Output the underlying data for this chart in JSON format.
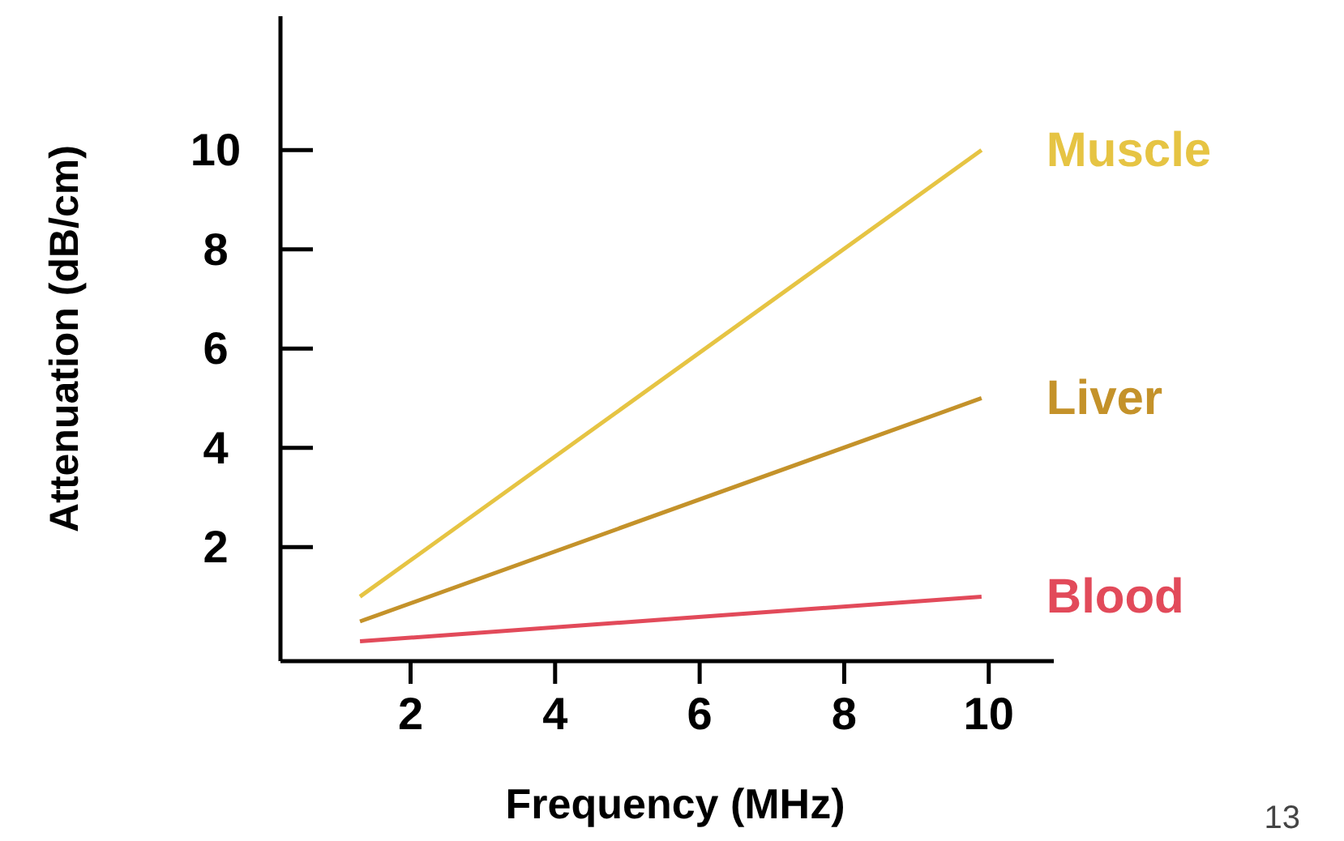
{
  "chart_data": {
    "type": "line",
    "xlabel": "Frequency (MHz)",
    "ylabel": "Attenuation (dB/cm)",
    "xlim": [
      0.2,
      10.9
    ],
    "ylim": [
      -0.3,
      12.7
    ],
    "xticks": [
      2,
      4,
      6,
      8,
      10
    ],
    "yticks": [
      2,
      4,
      6,
      8,
      10
    ],
    "grid": false,
    "legend": false,
    "marker": "none",
    "line_style": "solid",
    "annotations": [
      "13"
    ],
    "x": [
      1.3,
      9.9
    ],
    "series": [
      {
        "name": "Muscle",
        "color": "#e6c443",
        "values": [
          1.0,
          10.0
        ]
      },
      {
        "name": "Liver",
        "color": "#c4922a",
        "values": [
          0.5,
          5.0
        ]
      },
      {
        "name": "Blood",
        "color": "#e24a5a",
        "values": [
          0.1,
          1.0
        ]
      }
    ]
  }
}
